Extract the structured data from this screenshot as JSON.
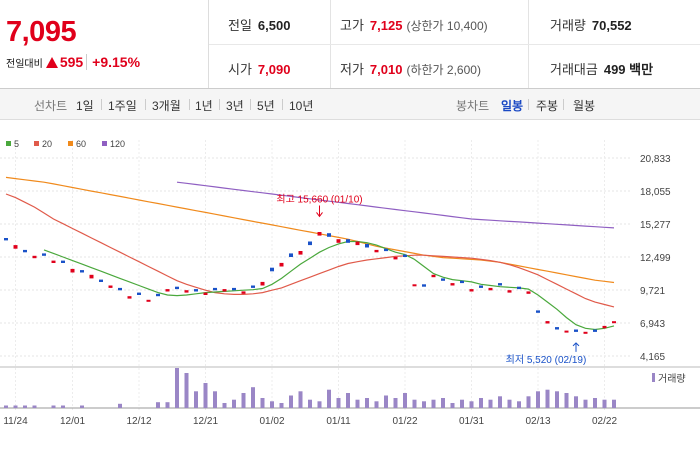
{
  "header": {
    "price": "7,095",
    "change_label": "전일대비",
    "change_value": "595",
    "change_pct": "+9.15%",
    "prev_close_label": "전일",
    "prev_close": "6,500",
    "open_label": "시가",
    "open": "7,090",
    "high_label": "고가",
    "high": "7,125",
    "upper_limit": "(상한가 10,400)",
    "low_label": "저가",
    "low": "7,010",
    "lower_limit": "(하한가 2,600)",
    "volume_label": "거래량",
    "volume": "70,552",
    "amount_label": "거래대금",
    "amount": "499 백만"
  },
  "toolbar": {
    "line_chart_label": "선차트",
    "periods": [
      "1일",
      "1주일",
      "3개월",
      "1년",
      "3년",
      "5년",
      "10년"
    ],
    "candle_chart_label": "봉차트",
    "candle_periods": [
      "일봉",
      "주봉",
      "월봉"
    ],
    "active_candle": "일봉"
  },
  "colors": {
    "up": "#e0001b",
    "down": "#1a52c8",
    "ma5": "#4aa83c",
    "ma20": "#e05a4a",
    "ma60": "#f08a1c",
    "ma120": "#8f5fc2",
    "volume": "#9a86c6"
  },
  "legend": [
    "5",
    "20",
    "60",
    "120"
  ],
  "volume_label": "거래량",
  "chart_data": {
    "type": "candlestick",
    "y_ticks": [
      "20,833",
      "18,055",
      "15,277",
      "12,499",
      "9,721",
      "6,943",
      "4,165"
    ],
    "ylim": [
      4165,
      20833
    ],
    "x_ticks": [
      "11/24",
      "12/01",
      "12/12",
      "12/21",
      "01/02",
      "01/11",
      "01/22",
      "01/31",
      "02/13",
      "02/22"
    ],
    "x_tick_index": [
      1,
      7,
      14,
      21,
      28,
      35,
      42,
      49,
      56,
      63
    ],
    "n_bars": 65,
    "annotations": [
      {
        "text": "최고 15,660 (01/10)",
        "index": 33,
        "value": 15660,
        "kind": "high"
      },
      {
        "text": "최저 5,520 (02/19)",
        "index": 60,
        "value": 5520,
        "kind": "low"
      }
    ],
    "close": [
      13900,
      13500,
      12900,
      12600,
      12600,
      12200,
      12000,
      11500,
      11200,
      11000,
      10400,
      10100,
      9700,
      9200,
      9300,
      8900,
      9200,
      9800,
      9800,
      9700,
      9600,
      9500,
      9700,
      9800,
      9700,
      9600,
      9900,
      10400,
      11300,
      12000,
      12500,
      13000,
      13500,
      14600,
      14200,
      14000,
      13700,
      13800,
      13300,
      13100,
      13000,
      12500,
      12500,
      10200,
      10000,
      11000,
      10500,
      10300,
      10300,
      9800,
      9900,
      9900,
      10100,
      9700,
      9800,
      9600,
      7800,
      7100,
      6400,
      6300,
      6200,
      6200,
      6200,
      6700,
      7095
    ],
    "open": [
      14100,
      13200,
      13100,
      12400,
      12800,
      12000,
      12200,
      11200,
      11400,
      10700,
      10600,
      9900,
      9900,
      9000,
      9500,
      8800,
      9400,
      9600,
      10000,
      9500,
      9800,
      9300,
      9900,
      9600,
      9900,
      9400,
      10100,
      10100,
      11600,
      11700,
      12800,
      12700,
      13800,
      14300,
      14500,
      13700,
      14000,
      13500,
      13600,
      12900,
      13200,
      12300,
      12700,
      10100,
      10200,
      10800,
      10700,
      10100,
      10500,
      9600,
      10100,
      9700,
      10300,
      9500,
      10000,
      9400,
      8000,
      6900,
      6600,
      6200,
      6400,
      6100,
      6400,
      6500,
      7090
    ],
    "ma5": [
      null,
      null,
      null,
      null,
      13100,
      12800,
      12500,
      12200,
      11900,
      11600,
      11300,
      11000,
      10700,
      10400,
      10100,
      9800,
      9500,
      9300,
      9250,
      9300,
      9400,
      9500,
      9550,
      9600,
      9650,
      9700,
      9750,
      9850,
      10200,
      10700,
      11300,
      11900,
      12400,
      12900,
      13300,
      13600,
      13800,
      13800,
      13700,
      13500,
      13200,
      12900,
      12700,
      12300,
      11700,
      11100,
      10800,
      10600,
      10500,
      10400,
      10200,
      10100,
      10000,
      9950,
      9900,
      9800,
      9300,
      8700,
      8100,
      7400,
      6800,
      6500,
      6400,
      6500,
      6700
    ],
    "ma20": [
      17800,
      17500,
      17100,
      16700,
      16200,
      15700,
      15300,
      14900,
      14500,
      14100,
      13700,
      13300,
      12900,
      12500,
      12100,
      11700,
      11300,
      10900,
      10500,
      10200,
      9950,
      9700,
      9500,
      9400,
      9350,
      9350,
      9400,
      9500,
      9700,
      9900,
      10200,
      10500,
      10800,
      11100,
      11400,
      11700,
      11950,
      12100,
      12250,
      12350,
      12450,
      12550,
      12600,
      12650,
      12650,
      12600,
      12550,
      12500,
      12450,
      12400,
      12300,
      12200,
      12050,
      11850,
      11600,
      11300,
      11000,
      10600,
      10200,
      9800,
      9400,
      9000,
      8700,
      8500,
      8300
    ],
    "ma60": [
      19200,
      19100,
      19000,
      18900,
      18800,
      18650,
      18500,
      18350,
      18200,
      18050,
      17900,
      17750,
      17600,
      17450,
      17300,
      17150,
      17000,
      16850,
      16700,
      16550,
      16400,
      16250,
      16100,
      15950,
      15800,
      15650,
      15500,
      15350,
      15200,
      15050,
      14900,
      14750,
      14600,
      14450,
      14300,
      14150,
      14000,
      13800,
      13600,
      13400,
      13250,
      13100,
      12950,
      12800,
      12650,
      12550,
      12450,
      12400,
      12350,
      12300,
      12250,
      12150,
      12050,
      11900,
      11750,
      11600,
      11450,
      11300,
      11150,
      11000,
      10850,
      10700,
      10550,
      10450,
      10350
    ],
    "ma120": [
      null,
      null,
      null,
      null,
      null,
      null,
      null,
      null,
      null,
      null,
      null,
      null,
      null,
      null,
      null,
      null,
      null,
      null,
      18800,
      18700,
      18600,
      18500,
      18400,
      18300,
      18200,
      18100,
      18000,
      17900,
      17800,
      17700,
      17600,
      17500,
      17400,
      17300,
      17200,
      17100,
      17000,
      16900,
      16800,
      16700,
      16600,
      16500,
      16400,
      16300,
      16200,
      16100,
      16000,
      15900,
      15800,
      15700,
      15650,
      15600,
      15550,
      15500,
      15450,
      15400,
      15350,
      15300,
      15250,
      15200,
      15150,
      15100,
      15050,
      15000,
      14950
    ],
    "volume": [
      3,
      3,
      3,
      3,
      0,
      3,
      3,
      0,
      3,
      0,
      0,
      0,
      5,
      0,
      0,
      0,
      7,
      7,
      48,
      42,
      20,
      30,
      20,
      6,
      10,
      18,
      25,
      12,
      8,
      6,
      15,
      20,
      10,
      8,
      22,
      12,
      18,
      10,
      12,
      8,
      15,
      12,
      18,
      10,
      8,
      10,
      12,
      6,
      10,
      8,
      12,
      10,
      14,
      10,
      8,
      14,
      20,
      22,
      20,
      18,
      14,
      10,
      12,
      10,
      10
    ]
  }
}
